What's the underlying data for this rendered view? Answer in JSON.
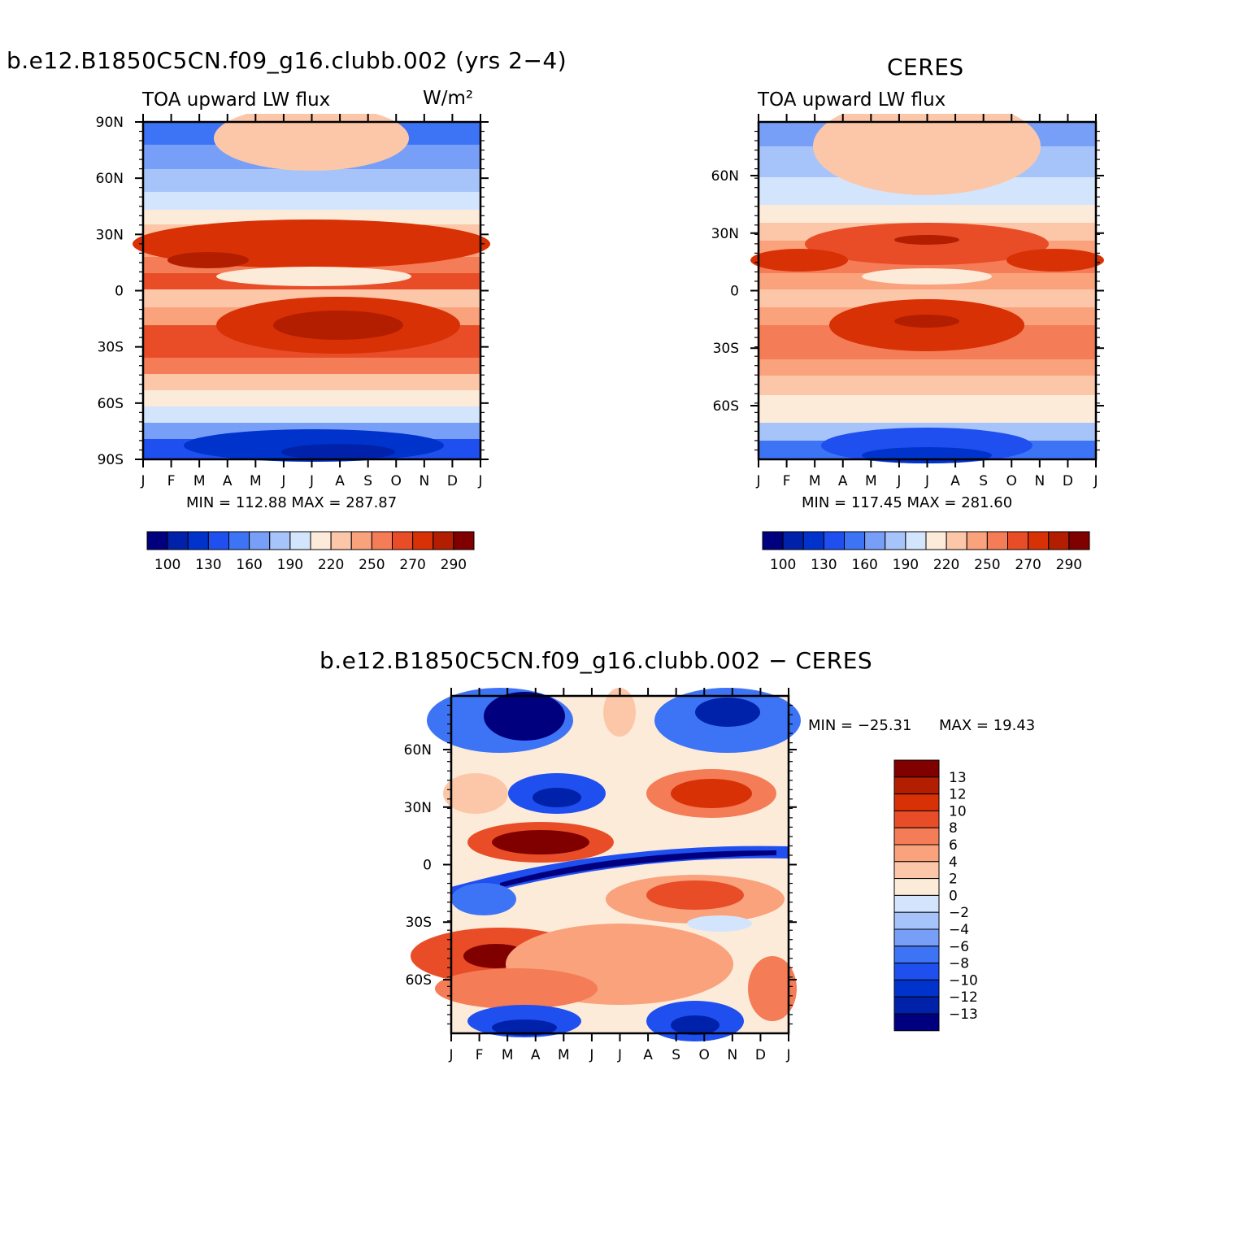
{
  "palette": {
    "levels": [
      "#00007f",
      "#0022aa",
      "#0033cc",
      "#1f4fef",
      "#3d73f5",
      "#789ff8",
      "#a7c4fa",
      "#d3e5fd",
      "#fdebd9",
      "#fcc7a8",
      "#f9a27c",
      "#f47c56",
      "#e84d27",
      "#d83106",
      "#b31e00",
      "#800000"
    ]
  },
  "chart_data": [
    {
      "type": "heatmap",
      "title": "b.e12.B1850C5CN.f09_g16.clubb.002 (yrs 2−4)",
      "left_label": "TOA upward LW flux",
      "units_label": "W/m²",
      "x_ticks": [
        "J",
        "F",
        "M",
        "A",
        "M",
        "J",
        "J",
        "A",
        "S",
        "O",
        "N",
        "D",
        "J"
      ],
      "y_ticks": [
        "90N",
        "60N",
        "30N",
        "0",
        "30S",
        "60S",
        "90S"
      ],
      "stats": "MIN = 112.88 MAX = 287.87",
      "min": 112.88,
      "max": 287.87,
      "colorbar_labels": [
        "100",
        "130",
        "160",
        "190",
        "220",
        "250",
        "270",
        "290"
      ],
      "latitude_profile": [
        [
          90,
          150
        ],
        [
          75,
          168
        ],
        [
          60,
          195
        ],
        [
          45,
          230
        ],
        [
          30,
          262
        ],
        [
          20,
          276
        ],
        [
          10,
          262
        ],
        [
          0,
          245
        ],
        [
          -10,
          255
        ],
        [
          -20,
          278
        ],
        [
          -30,
          268
        ],
        [
          -45,
          245
        ],
        [
          -60,
          215
        ],
        [
          -75,
          170
        ],
        [
          -90,
          125
        ]
      ]
    },
    {
      "type": "heatmap",
      "title": "CERES",
      "left_label": "TOA upward LW flux",
      "x_ticks": [
        "J",
        "F",
        "M",
        "A",
        "M",
        "J",
        "J",
        "A",
        "S",
        "O",
        "N",
        "D",
        "J"
      ],
      "y_ticks": [
        "60N",
        "30N",
        "0",
        "30S",
        "60S"
      ],
      "stats": "MIN = 117.45 MAX = 281.60",
      "min": 117.45,
      "max": 281.6,
      "colorbar_labels": [
        "100",
        "130",
        "160",
        "190",
        "220",
        "250",
        "270",
        "290"
      ]
    },
    {
      "type": "heatmap",
      "title": "b.e12.B1850C5CN.f09_g16.clubb.002 − CERES",
      "x_ticks": [
        "J",
        "F",
        "M",
        "A",
        "M",
        "J",
        "J",
        "A",
        "S",
        "O",
        "N",
        "D",
        "J"
      ],
      "y_ticks": [
        "60N",
        "30N",
        "0",
        "30S",
        "60S"
      ],
      "stats_min_label": "MIN = −25.31",
      "stats_max_label": "MAX =   19.43",
      "min": -25.31,
      "max": 19.43,
      "colorbar_labels": [
        "13",
        "12",
        "10",
        "8",
        "6",
        "4",
        "2",
        "0",
        "−2",
        "−4",
        "−6",
        "−8",
        "−10",
        "−12",
        "−13"
      ]
    }
  ]
}
